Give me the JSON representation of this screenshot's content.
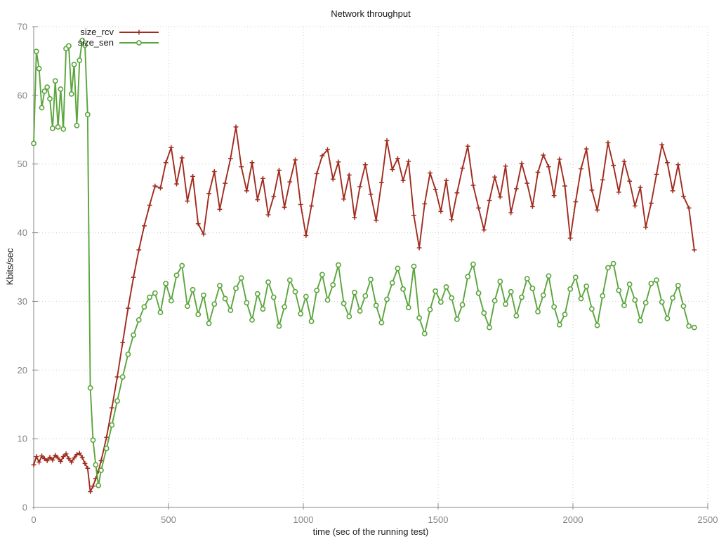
{
  "chart_data": {
    "type": "line",
    "title": "Network throughput",
    "xlabel": "time (sec of the running test)",
    "ylabel": "Kbits/sec",
    "xlim": [
      0,
      2500
    ],
    "ylim": [
      0,
      70
    ],
    "xticks": [
      0,
      500,
      1000,
      1500,
      2000,
      2500
    ],
    "yticks": [
      0,
      10,
      20,
      30,
      40,
      50,
      60,
      70
    ],
    "grid": true,
    "grid_style": "dotted",
    "legend_position": "top-left-inside",
    "colors": {
      "axis": "#8a8a8a",
      "grid": "#cfcfcf",
      "tick_labels": "#848484",
      "title_text": "#1a1a1a"
    },
    "series": [
      {
        "name": "size_rcv",
        "color": "#a02b1e",
        "marker": "plus",
        "points": [
          [
            0,
            6.2
          ],
          [
            10,
            7.4
          ],
          [
            20,
            6.6
          ],
          [
            30,
            7.5
          ],
          [
            40,
            7.1
          ],
          [
            50,
            6.8
          ],
          [
            60,
            7.3
          ],
          [
            70,
            6.9
          ],
          [
            80,
            7.6
          ],
          [
            90,
            7.2
          ],
          [
            100,
            6.7
          ],
          [
            110,
            7.4
          ],
          [
            120,
            7.8
          ],
          [
            130,
            7.1
          ],
          [
            140,
            6.6
          ],
          [
            150,
            7.2
          ],
          [
            160,
            7.7
          ],
          [
            170,
            7.9
          ],
          [
            180,
            7.3
          ],
          [
            190,
            6.4
          ],
          [
            200,
            5.7
          ],
          [
            210,
            2.3
          ],
          [
            220,
            3.1
          ],
          [
            230,
            4.2
          ],
          [
            240,
            5.3
          ],
          [
            250,
            6.8
          ],
          [
            270,
            10.2
          ],
          [
            290,
            14.5
          ],
          [
            310,
            19.0
          ],
          [
            330,
            24.0
          ],
          [
            350,
            29.0
          ],
          [
            370,
            33.5
          ],
          [
            390,
            37.5
          ],
          [
            410,
            41.0
          ],
          [
            430,
            44.0
          ],
          [
            450,
            46.8
          ],
          [
            470,
            46.5
          ],
          [
            490,
            50.2
          ],
          [
            510,
            52.4
          ],
          [
            530,
            47.1
          ],
          [
            550,
            50.9
          ],
          [
            570,
            44.6
          ],
          [
            590,
            48.2
          ],
          [
            610,
            41.3
          ],
          [
            630,
            39.8
          ],
          [
            650,
            45.7
          ],
          [
            670,
            48.9
          ],
          [
            690,
            43.4
          ],
          [
            710,
            47.2
          ],
          [
            730,
            50.8
          ],
          [
            750,
            55.4
          ],
          [
            770,
            49.6
          ],
          [
            790,
            46.1
          ],
          [
            810,
            50.2
          ],
          [
            830,
            44.8
          ],
          [
            850,
            47.9
          ],
          [
            870,
            42.6
          ],
          [
            890,
            45.3
          ],
          [
            910,
            49.1
          ],
          [
            930,
            43.7
          ],
          [
            950,
            47.4
          ],
          [
            970,
            50.6
          ],
          [
            990,
            44.1
          ],
          [
            1010,
            39.6
          ],
          [
            1030,
            43.9
          ],
          [
            1050,
            48.6
          ],
          [
            1070,
            51.2
          ],
          [
            1090,
            52.1
          ],
          [
            1110,
            47.8
          ],
          [
            1130,
            50.3
          ],
          [
            1150,
            44.9
          ],
          [
            1170,
            48.4
          ],
          [
            1190,
            42.2
          ],
          [
            1210,
            46.7
          ],
          [
            1230,
            49.9
          ],
          [
            1250,
            45.6
          ],
          [
            1270,
            41.8
          ],
          [
            1290,
            47.3
          ],
          [
            1310,
            53.4
          ],
          [
            1330,
            49.2
          ],
          [
            1350,
            50.8
          ],
          [
            1370,
            47.6
          ],
          [
            1390,
            50.4
          ],
          [
            1410,
            42.5
          ],
          [
            1430,
            37.8
          ],
          [
            1450,
            44.2
          ],
          [
            1470,
            48.7
          ],
          [
            1490,
            46.3
          ],
          [
            1510,
            43.1
          ],
          [
            1530,
            47.6
          ],
          [
            1550,
            41.9
          ],
          [
            1570,
            45.8
          ],
          [
            1590,
            49.4
          ],
          [
            1610,
            52.6
          ],
          [
            1630,
            46.9
          ],
          [
            1650,
            43.6
          ],
          [
            1670,
            40.4
          ],
          [
            1690,
            44.7
          ],
          [
            1710,
            48.1
          ],
          [
            1730,
            45.2
          ],
          [
            1750,
            49.7
          ],
          [
            1770,
            42.9
          ],
          [
            1790,
            46.4
          ],
          [
            1810,
            50.1
          ],
          [
            1830,
            47.2
          ],
          [
            1850,
            43.8
          ],
          [
            1870,
            48.8
          ],
          [
            1890,
            51.3
          ],
          [
            1910,
            49.6
          ],
          [
            1930,
            45.4
          ],
          [
            1950,
            50.7
          ],
          [
            1970,
            46.8
          ],
          [
            1990,
            39.2
          ],
          [
            2010,
            44.5
          ],
          [
            2030,
            49.3
          ],
          [
            2050,
            52.2
          ],
          [
            2070,
            46.2
          ],
          [
            2090,
            43.3
          ],
          [
            2110,
            47.7
          ],
          [
            2130,
            53.1
          ],
          [
            2150,
            49.8
          ],
          [
            2170,
            45.9
          ],
          [
            2190,
            50.4
          ],
          [
            2210,
            47.5
          ],
          [
            2230,
            43.9
          ],
          [
            2250,
            46.6
          ],
          [
            2270,
            40.8
          ],
          [
            2290,
            44.3
          ],
          [
            2310,
            48.5
          ],
          [
            2330,
            52.8
          ],
          [
            2350,
            50.2
          ],
          [
            2370,
            46.1
          ],
          [
            2390,
            49.9
          ],
          [
            2410,
            45.3
          ],
          [
            2430,
            43.6
          ],
          [
            2450,
            37.5
          ]
        ]
      },
      {
        "name": "size_sen",
        "color": "#5aa53c",
        "marker": "circle-open",
        "points": [
          [
            0,
            53.0
          ],
          [
            10,
            66.4
          ],
          [
            20,
            63.9
          ],
          [
            30,
            58.2
          ],
          [
            40,
            60.6
          ],
          [
            50,
            61.2
          ],
          [
            60,
            59.5
          ],
          [
            70,
            55.2
          ],
          [
            80,
            62.1
          ],
          [
            90,
            55.4
          ],
          [
            100,
            60.9
          ],
          [
            110,
            55.1
          ],
          [
            120,
            66.8
          ],
          [
            130,
            67.2
          ],
          [
            140,
            60.2
          ],
          [
            150,
            64.5
          ],
          [
            160,
            55.6
          ],
          [
            170,
            65.1
          ],
          [
            180,
            68.0
          ],
          [
            190,
            67.3
          ],
          [
            200,
            57.2
          ],
          [
            210,
            17.4
          ],
          [
            220,
            9.8
          ],
          [
            230,
            6.2
          ],
          [
            240,
            3.2
          ],
          [
            250,
            5.4
          ],
          [
            270,
            8.6
          ],
          [
            290,
            12.0
          ],
          [
            310,
            15.5
          ],
          [
            330,
            19.0
          ],
          [
            350,
            22.3
          ],
          [
            370,
            25.1
          ],
          [
            390,
            27.3
          ],
          [
            410,
            29.2
          ],
          [
            430,
            30.6
          ],
          [
            450,
            31.2
          ],
          [
            470,
            28.4
          ],
          [
            490,
            32.6
          ],
          [
            510,
            30.1
          ],
          [
            530,
            33.8
          ],
          [
            550,
            35.2
          ],
          [
            570,
            29.3
          ],
          [
            590,
            31.7
          ],
          [
            610,
            28.1
          ],
          [
            630,
            30.9
          ],
          [
            650,
            26.8
          ],
          [
            670,
            29.6
          ],
          [
            690,
            32.3
          ],
          [
            710,
            30.4
          ],
          [
            730,
            28.7
          ],
          [
            750,
            31.9
          ],
          [
            770,
            33.4
          ],
          [
            790,
            29.8
          ],
          [
            810,
            27.3
          ],
          [
            830,
            31.1
          ],
          [
            850,
            28.9
          ],
          [
            870,
            32.8
          ],
          [
            890,
            30.6
          ],
          [
            910,
            26.4
          ],
          [
            930,
            29.2
          ],
          [
            950,
            33.1
          ],
          [
            970,
            31.4
          ],
          [
            990,
            28.2
          ],
          [
            1010,
            30.7
          ],
          [
            1030,
            27.1
          ],
          [
            1050,
            31.6
          ],
          [
            1070,
            33.9
          ],
          [
            1090,
            30.2
          ],
          [
            1110,
            32.4
          ],
          [
            1130,
            35.3
          ],
          [
            1150,
            29.7
          ],
          [
            1170,
            27.8
          ],
          [
            1190,
            31.3
          ],
          [
            1210,
            28.6
          ],
          [
            1230,
            30.8
          ],
          [
            1250,
            33.2
          ],
          [
            1270,
            29.4
          ],
          [
            1290,
            26.9
          ],
          [
            1310,
            30.3
          ],
          [
            1330,
            32.7
          ],
          [
            1350,
            34.8
          ],
          [
            1370,
            31.8
          ],
          [
            1390,
            29.1
          ],
          [
            1410,
            35.1
          ],
          [
            1430,
            27.6
          ],
          [
            1450,
            25.3
          ],
          [
            1470,
            28.8
          ],
          [
            1490,
            31.5
          ],
          [
            1510,
            29.9
          ],
          [
            1530,
            32.1
          ],
          [
            1550,
            30.5
          ],
          [
            1570,
            27.4
          ],
          [
            1590,
            29.5
          ],
          [
            1610,
            33.6
          ],
          [
            1630,
            35.4
          ],
          [
            1650,
            31.2
          ],
          [
            1670,
            28.3
          ],
          [
            1690,
            26.2
          ],
          [
            1710,
            30.1
          ],
          [
            1730,
            32.9
          ],
          [
            1750,
            29.6
          ],
          [
            1770,
            31.4
          ],
          [
            1790,
            27.9
          ],
          [
            1810,
            30.6
          ],
          [
            1830,
            33.3
          ],
          [
            1850,
            31.9
          ],
          [
            1870,
            28.5
          ],
          [
            1890,
            30.9
          ],
          [
            1910,
            33.7
          ],
          [
            1930,
            29.2
          ],
          [
            1950,
            26.6
          ],
          [
            1970,
            28.1
          ],
          [
            1990,
            31.8
          ],
          [
            2010,
            33.5
          ],
          [
            2030,
            30.4
          ],
          [
            2050,
            32.2
          ],
          [
            2070,
            28.9
          ],
          [
            2090,
            26.5
          ],
          [
            2110,
            30.8
          ],
          [
            2130,
            34.9
          ],
          [
            2150,
            35.5
          ],
          [
            2170,
            31.6
          ],
          [
            2190,
            29.4
          ],
          [
            2210,
            32.5
          ],
          [
            2230,
            30.2
          ],
          [
            2250,
            27.2
          ],
          [
            2270,
            29.8
          ],
          [
            2290,
            32.6
          ],
          [
            2310,
            33.1
          ],
          [
            2330,
            29.9
          ],
          [
            2350,
            27.5
          ],
          [
            2370,
            30.5
          ],
          [
            2390,
            32.3
          ],
          [
            2410,
            29.3
          ],
          [
            2430,
            26.4
          ],
          [
            2450,
            26.2
          ]
        ]
      }
    ]
  }
}
